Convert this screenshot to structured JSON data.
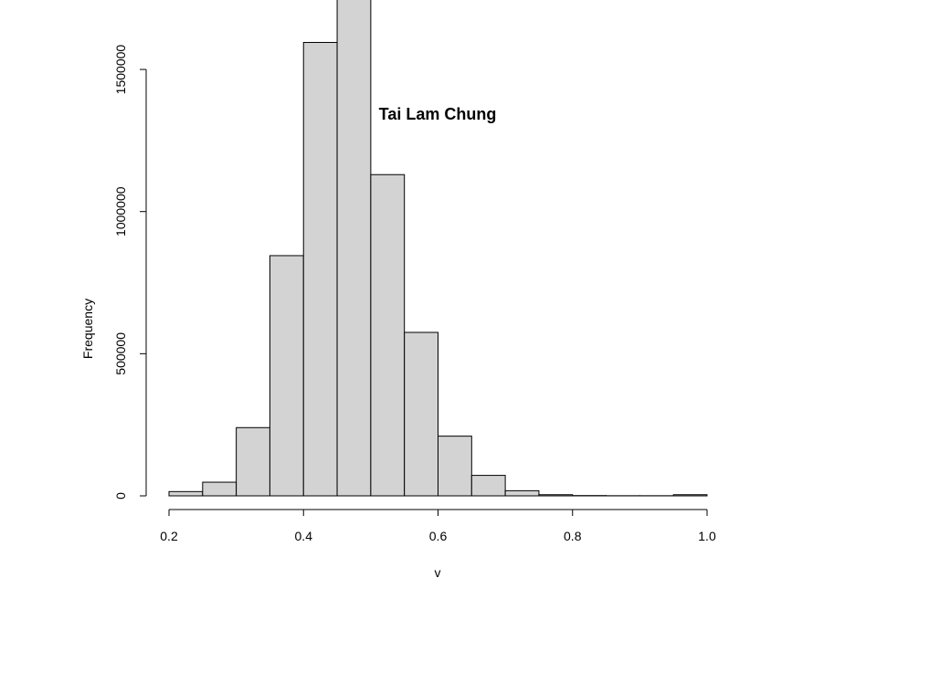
{
  "chart_data": {
    "type": "bar",
    "title": "Tai Lam Chung",
    "xlabel": "v",
    "ylabel": "Frequency",
    "xlim": [
      0.2,
      1.0
    ],
    "ylim": [
      0,
      1780000
    ],
    "x_ticks": [
      "0.2",
      "0.4",
      "0.6",
      "0.8",
      "1.0"
    ],
    "y_ticks": [
      "0",
      "500000",
      "1000000",
      "1500000"
    ],
    "bin_width": 0.05,
    "bins": [
      {
        "x0": 0.2,
        "x1": 0.25,
        "value": 15000
      },
      {
        "x0": 0.25,
        "x1": 0.3,
        "value": 48000
      },
      {
        "x0": 0.3,
        "x1": 0.35,
        "value": 240000
      },
      {
        "x0": 0.35,
        "x1": 0.4,
        "value": 845000
      },
      {
        "x0": 0.4,
        "x1": 0.45,
        "value": 1595000
      },
      {
        "x0": 0.45,
        "x1": 0.5,
        "value": 1770000
      },
      {
        "x0": 0.5,
        "x1": 0.55,
        "value": 1130000
      },
      {
        "x0": 0.55,
        "x1": 0.6,
        "value": 575000
      },
      {
        "x0": 0.6,
        "x1": 0.65,
        "value": 210000
      },
      {
        "x0": 0.65,
        "x1": 0.7,
        "value": 72000
      },
      {
        "x0": 0.7,
        "x1": 0.75,
        "value": 18000
      },
      {
        "x0": 0.75,
        "x1": 0.8,
        "value": 4000
      },
      {
        "x0": 0.8,
        "x1": 0.85,
        "value": 1000
      },
      {
        "x0": 0.85,
        "x1": 0.9,
        "value": 500
      },
      {
        "x0": 0.9,
        "x1": 0.95,
        "value": 500
      },
      {
        "x0": 0.95,
        "x1": 1.0,
        "value": 4000
      }
    ],
    "grid": false,
    "bar_fill": "#d3d3d3",
    "bar_stroke": "#000000"
  }
}
